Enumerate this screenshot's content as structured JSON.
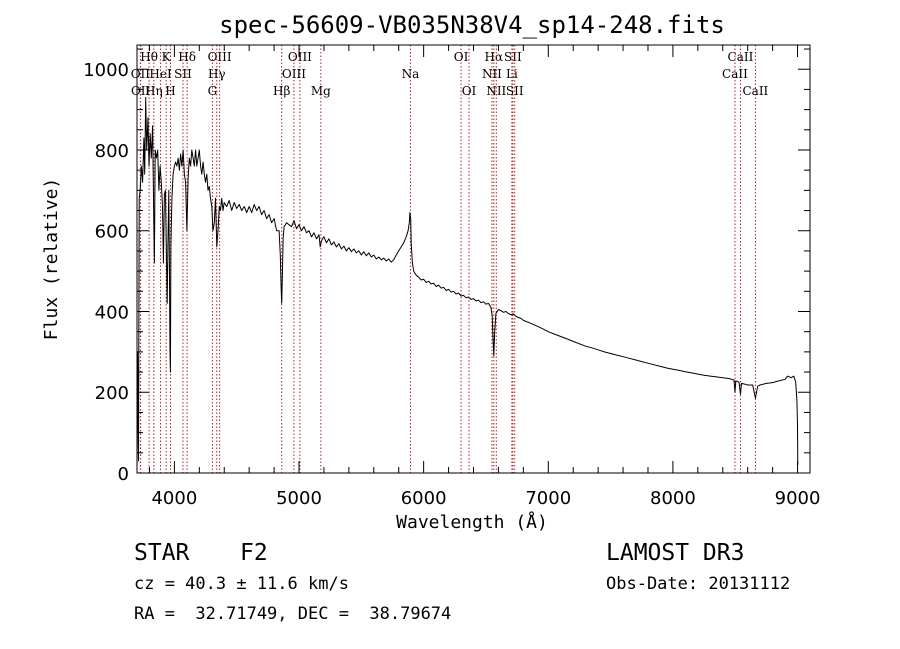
{
  "chart_data": {
    "type": "line",
    "title": "spec-56609-VB035N38V4_sp14-248.fits",
    "xlabel": "Wavelength (Å)",
    "ylabel": "Flux (relative)",
    "xlim": [
      3700,
      9100
    ],
    "ylim": [
      0,
      1060
    ],
    "xticks": [
      4000,
      5000,
      6000,
      7000,
      8000,
      9000
    ],
    "yticks": [
      0,
      200,
      400,
      600,
      800,
      1000
    ],
    "series": [
      {
        "name": "flux",
        "points": [
          [
            3700,
            0
          ],
          [
            3705,
            300
          ],
          [
            3712,
            30
          ],
          [
            3718,
            680
          ],
          [
            3725,
            700
          ],
          [
            3735,
            760
          ],
          [
            3745,
            720
          ],
          [
            3755,
            830
          ],
          [
            3762,
            740
          ],
          [
            3770,
            930
          ],
          [
            3778,
            800
          ],
          [
            3788,
            880
          ],
          [
            3796,
            760
          ],
          [
            3806,
            840
          ],
          [
            3815,
            780
          ],
          [
            3825,
            860
          ],
          [
            3833,
            660
          ],
          [
            3840,
            520
          ],
          [
            3846,
            800
          ],
          [
            3856,
            780
          ],
          [
            3866,
            800
          ],
          [
            3876,
            700
          ],
          [
            3885,
            760
          ],
          [
            3895,
            720
          ],
          [
            3905,
            660
          ],
          [
            3912,
            520
          ],
          [
            3920,
            690
          ],
          [
            3928,
            700
          ],
          [
            3935,
            560
          ],
          [
            3942,
            420
          ],
          [
            3948,
            560
          ],
          [
            3955,
            700
          ],
          [
            3960,
            520
          ],
          [
            3965,
            300
          ],
          [
            3968,
            250
          ],
          [
            3972,
            560
          ],
          [
            3980,
            680
          ],
          [
            3990,
            740
          ],
          [
            4000,
            760
          ],
          [
            4010,
            770
          ],
          [
            4020,
            760
          ],
          [
            4030,
            780
          ],
          [
            4040,
            750
          ],
          [
            4050,
            790
          ],
          [
            4060,
            760
          ],
          [
            4070,
            800
          ],
          [
            4080,
            740
          ],
          [
            4090,
            720
          ],
          [
            4100,
            600
          ],
          [
            4110,
            730
          ],
          [
            4120,
            780
          ],
          [
            4130,
            760
          ],
          [
            4140,
            800
          ],
          [
            4150,
            780
          ],
          [
            4160,
            760
          ],
          [
            4170,
            800
          ],
          [
            4180,
            760
          ],
          [
            4190,
            780
          ],
          [
            4200,
            800
          ],
          [
            4210,
            760
          ],
          [
            4220,
            740
          ],
          [
            4230,
            770
          ],
          [
            4240,
            740
          ],
          [
            4250,
            720
          ],
          [
            4260,
            740
          ],
          [
            4270,
            700
          ],
          [
            4280,
            710
          ],
          [
            4290,
            680
          ],
          [
            4300,
            660
          ],
          [
            4310,
            600
          ],
          [
            4320,
            620
          ],
          [
            4330,
            680
          ],
          [
            4340,
            560
          ],
          [
            4350,
            600
          ],
          [
            4360,
            660
          ],
          [
            4370,
            650
          ],
          [
            4380,
            680
          ],
          [
            4390,
            650
          ],
          [
            4400,
            670
          ],
          [
            4420,
            660
          ],
          [
            4440,
            675
          ],
          [
            4460,
            650
          ],
          [
            4480,
            670
          ],
          [
            4500,
            655
          ],
          [
            4520,
            665
          ],
          [
            4540,
            650
          ],
          [
            4560,
            660
          ],
          [
            4580,
            645
          ],
          [
            4600,
            660
          ],
          [
            4620,
            645
          ],
          [
            4640,
            665
          ],
          [
            4660,
            650
          ],
          [
            4680,
            660
          ],
          [
            4700,
            640
          ],
          [
            4720,
            650
          ],
          [
            4740,
            630
          ],
          [
            4760,
            640
          ],
          [
            4780,
            620
          ],
          [
            4800,
            630
          ],
          [
            4820,
            600
          ],
          [
            4840,
            600
          ],
          [
            4850,
            540
          ],
          [
            4856,
            460
          ],
          [
            4861,
            420
          ],
          [
            4866,
            480
          ],
          [
            4872,
            580
          ],
          [
            4880,
            610
          ],
          [
            4900,
            620
          ],
          [
            4920,
            615
          ],
          [
            4940,
            610
          ],
          [
            4960,
            625
          ],
          [
            4980,
            605
          ],
          [
            5000,
            615
          ],
          [
            5020,
            600
          ],
          [
            5040,
            610
          ],
          [
            5060,
            595
          ],
          [
            5080,
            600
          ],
          [
            5100,
            585
          ],
          [
            5120,
            595
          ],
          [
            5140,
            580
          ],
          [
            5160,
            590
          ],
          [
            5170,
            560
          ],
          [
            5180,
            575
          ],
          [
            5200,
            585
          ],
          [
            5220,
            570
          ],
          [
            5240,
            580
          ],
          [
            5260,
            565
          ],
          [
            5280,
            572
          ],
          [
            5300,
            560
          ],
          [
            5320,
            568
          ],
          [
            5340,
            555
          ],
          [
            5360,
            562
          ],
          [
            5380,
            550
          ],
          [
            5400,
            558
          ],
          [
            5420,
            548
          ],
          [
            5440,
            555
          ],
          [
            5460,
            545
          ],
          [
            5480,
            550
          ],
          [
            5500,
            540
          ],
          [
            5520,
            548
          ],
          [
            5540,
            538
          ],
          [
            5560,
            545
          ],
          [
            5580,
            535
          ],
          [
            5600,
            540
          ],
          [
            5620,
            530
          ],
          [
            5640,
            535
          ],
          [
            5660,
            528
          ],
          [
            5680,
            532
          ],
          [
            5700,
            525
          ],
          [
            5720,
            530
          ],
          [
            5740,
            522
          ],
          [
            5760,
            528
          ],
          [
            5780,
            540
          ],
          [
            5800,
            550
          ],
          [
            5820,
            560
          ],
          [
            5840,
            570
          ],
          [
            5860,
            585
          ],
          [
            5875,
            600
          ],
          [
            5885,
            620
          ],
          [
            5890,
            645
          ],
          [
            5896,
            630
          ],
          [
            5900,
            570
          ],
          [
            5910,
            520
          ],
          [
            5920,
            500
          ],
          [
            5940,
            490
          ],
          [
            5960,
            485
          ],
          [
            5980,
            478
          ],
          [
            6000,
            480
          ],
          [
            6020,
            472
          ],
          [
            6040,
            475
          ],
          [
            6060,
            468
          ],
          [
            6080,
            470
          ],
          [
            6100,
            462
          ],
          [
            6120,
            465
          ],
          [
            6140,
            458
          ],
          [
            6160,
            460
          ],
          [
            6180,
            452
          ],
          [
            6200,
            455
          ],
          [
            6220,
            448
          ],
          [
            6240,
            450
          ],
          [
            6260,
            443
          ],
          [
            6280,
            446
          ],
          [
            6300,
            438
          ],
          [
            6320,
            440
          ],
          [
            6340,
            434
          ],
          [
            6360,
            436
          ],
          [
            6380,
            430
          ],
          [
            6400,
            432
          ],
          [
            6420,
            426
          ],
          [
            6440,
            428
          ],
          [
            6460,
            422
          ],
          [
            6480,
            424
          ],
          [
            6500,
            418
          ],
          [
            6520,
            420
          ],
          [
            6540,
            410
          ],
          [
            6550,
            390
          ],
          [
            6556,
            340
          ],
          [
            6563,
            290
          ],
          [
            6570,
            350
          ],
          [
            6580,
            395
          ],
          [
            6600,
            405
          ],
          [
            6620,
            402
          ],
          [
            6640,
            398
          ],
          [
            6660,
            400
          ],
          [
            6680,
            395
          ],
          [
            6700,
            392
          ],
          [
            6720,
            394
          ],
          [
            6740,
            388
          ],
          [
            6760,
            385
          ],
          [
            6780,
            383
          ],
          [
            6800,
            378
          ],
          [
            6850,
            372
          ],
          [
            6900,
            365
          ],
          [
            6950,
            358
          ],
          [
            7000,
            350
          ],
          [
            7050,
            344
          ],
          [
            7100,
            338
          ],
          [
            7150,
            332
          ],
          [
            7200,
            326
          ],
          [
            7250,
            320
          ],
          [
            7300,
            314
          ],
          [
            7350,
            310
          ],
          [
            7400,
            305
          ],
          [
            7450,
            300
          ],
          [
            7500,
            296
          ],
          [
            7550,
            292
          ],
          [
            7600,
            288
          ],
          [
            7650,
            284
          ],
          [
            7700,
            280
          ],
          [
            7750,
            276
          ],
          [
            7800,
            272
          ],
          [
            7850,
            268
          ],
          [
            7900,
            264
          ],
          [
            7950,
            260
          ],
          [
            8000,
            257
          ],
          [
            8050,
            254
          ],
          [
            8100,
            251
          ],
          [
            8150,
            248
          ],
          [
            8200,
            245
          ],
          [
            8250,
            242
          ],
          [
            8300,
            240
          ],
          [
            8350,
            238
          ],
          [
            8400,
            236
          ],
          [
            8450,
            234
          ],
          [
            8490,
            230
          ],
          [
            8498,
            200
          ],
          [
            8505,
            228
          ],
          [
            8530,
            225
          ],
          [
            8542,
            195
          ],
          [
            8550,
            222
          ],
          [
            8580,
            220
          ],
          [
            8600,
            218
          ],
          [
            8640,
            218
          ],
          [
            8662,
            185
          ],
          [
            8680,
            215
          ],
          [
            8700,
            218
          ],
          [
            8750,
            222
          ],
          [
            8800,
            224
          ],
          [
            8850,
            228
          ],
          [
            8900,
            232
          ],
          [
            8920,
            240
          ],
          [
            8950,
            236
          ],
          [
            8970,
            240
          ],
          [
            8985,
            225
          ],
          [
            8995,
            180
          ],
          [
            9000,
            120
          ],
          [
            9002,
            20
          ]
        ]
      }
    ],
    "lines": [
      {
        "name": "Hθ",
        "x": 3797,
        "row": 0
      },
      {
        "name": "OII",
        "x": 3727,
        "row": 1
      },
      {
        "name": "OII",
        "x": 3729,
        "row": 2
      },
      {
        "name": "Hη",
        "x": 3835,
        "row": 2
      },
      {
        "name": "HeI",
        "x": 3889,
        "row": 1
      },
      {
        "name": "K",
        "x": 3934,
        "row": 0
      },
      {
        "name": "H",
        "x": 3969,
        "row": 2
      },
      {
        "name": "SII",
        "x": 4069,
        "row": 1
      },
      {
        "name": "Hδ",
        "x": 4102,
        "row": 0
      },
      {
        "name": "OIII",
        "x": 4363,
        "row": 0
      },
      {
        "name": "Hγ",
        "x": 4340,
        "row": 1
      },
      {
        "name": "G",
        "x": 4305,
        "row": 2
      },
      {
        "name": "Hβ",
        "x": 4861,
        "row": 2
      },
      {
        "name": "OIII",
        "x": 5007,
        "row": 0
      },
      {
        "name": "OIII",
        "x": 4959,
        "row": 1
      },
      {
        "name": "Mg",
        "x": 5175,
        "row": 2
      },
      {
        "name": "Na",
        "x": 5894,
        "row": 1
      },
      {
        "name": "OI",
        "x": 6300,
        "row": 0
      },
      {
        "name": "OI",
        "x": 6364,
        "row": 2
      },
      {
        "name": "Hα",
        "x": 6563,
        "row": 0
      },
      {
        "name": "NII",
        "x": 6548,
        "row": 1
      },
      {
        "name": "NII",
        "x": 6583,
        "row": 2
      },
      {
        "name": "SII",
        "x": 6716,
        "row": 0
      },
      {
        "name": "Li",
        "x": 6708,
        "row": 1
      },
      {
        "name": "SII",
        "x": 6731,
        "row": 2
      },
      {
        "name": "CaII",
        "x": 8542,
        "row": 0
      },
      {
        "name": "CaII",
        "x": 8498,
        "row": 1
      },
      {
        "name": "CaII",
        "x": 8662,
        "row": 2
      }
    ]
  },
  "info": {
    "class": "STAR",
    "subclass": "F2",
    "survey": "LAMOST DR3",
    "cz": "cz = 40.3 ± 11.6 km/s",
    "obs_date": "Obs-Date: 20131112",
    "radec": "RA =  32.71749, DEC =  38.79674"
  }
}
